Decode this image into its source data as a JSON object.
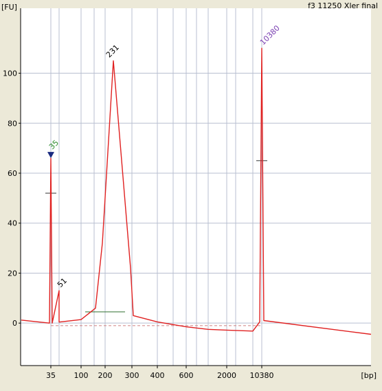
{
  "chart_data": {
    "type": "line",
    "title": "f3 11250 Xler final",
    "ylabel": "[FU]",
    "xlabel": "[bp]",
    "y_axis": {
      "ticks": [
        0,
        20,
        40,
        60,
        80,
        100
      ],
      "range": [
        -17,
        126
      ]
    },
    "x_axis": {
      "tick_labels": [
        "35",
        "50",
        "100",
        "150",
        "200",
        "300",
        "400",
        "500",
        "600",
        "700",
        "1000",
        "2000",
        "3000",
        "7000",
        "10380"
      ],
      "printed_labels": [
        "35",
        "100",
        "200",
        "300",
        "400",
        "600",
        "2000",
        "10380"
      ]
    },
    "grid": true,
    "peak_labels": [
      {
        "label": "35",
        "x_label": "35",
        "value": 66,
        "color": "#2e8b2e",
        "marker": "down-triangle"
      },
      {
        "label": "51",
        "x_label": "50",
        "value": 13
      },
      {
        "label": "231",
        "x_label": "200",
        "value": 105
      },
      {
        "label": "10380",
        "x_label": "10380",
        "value": 110,
        "color": "#7a3fb2"
      }
    ],
    "series": [
      {
        "color": "#e02020",
        "points": [
          [
            "start",
            1.2
          ],
          [
            "35",
            0.0
          ],
          [
            "35",
            66.0
          ],
          [
            "35",
            0.0
          ],
          [
            "50",
            13.0
          ],
          [
            "50",
            0.4
          ],
          [
            "100",
            1.4
          ],
          [
            "150",
            6.0
          ],
          [
            "200",
            32.0
          ],
          [
            "200",
            105.0
          ],
          [
            "300",
            22.0
          ],
          [
            "300",
            3.0
          ],
          [
            "400",
            0.5
          ],
          [
            "600",
            -1.5
          ],
          [
            "1000",
            -2.5
          ],
          [
            "2000",
            -2.8
          ],
          [
            "7000",
            -3.2
          ],
          [
            "10380",
            0.5
          ],
          [
            "10380",
            110.0
          ],
          [
            "10380",
            1.0
          ],
          [
            "end",
            -4.5
          ]
        ]
      }
    ],
    "annotation_lines": [
      {
        "color": "#2f6f2f",
        "y": 4.5,
        "x_range": [
          "100",
          "300"
        ]
      },
      {
        "color": "#d08080",
        "y": -1.0,
        "x_range": [
          "35",
          "10380"
        ],
        "dashed": true
      }
    ]
  }
}
